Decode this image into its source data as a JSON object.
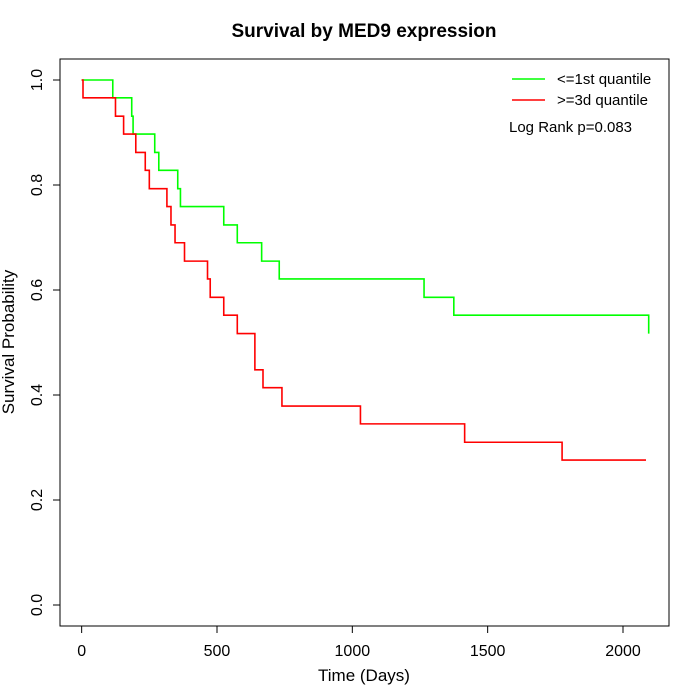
{
  "chart_data": {
    "type": "line",
    "title": "Survival by MED9 expression",
    "xlabel": "Time (Days)",
    "ylabel": "Survival Probability",
    "xlim": [
      -80,
      2170
    ],
    "ylim": [
      -0.04,
      1.04
    ],
    "x_ticks": [
      0,
      500,
      1000,
      1500,
      2000
    ],
    "x_tick_labels": [
      "0",
      "500",
      "1000",
      "1500",
      "2000"
    ],
    "y_ticks": [
      0.0,
      0.2,
      0.4,
      0.6,
      0.8,
      1.0
    ],
    "y_tick_labels": [
      "0.0",
      "0.2",
      "0.4",
      "0.6",
      "0.8",
      "1.0"
    ],
    "grid": false,
    "legend_position": "top-right",
    "annotation": "Log Rank p=0.083",
    "series": [
      {
        "name": "<=1st quantile",
        "color": "#00ff00",
        "step": true,
        "x": [
          0,
          115,
          185,
          190,
          270,
          285,
          355,
          365,
          525,
          575,
          665,
          730,
          1265,
          1375,
          2095
        ],
        "y": [
          1.0,
          0.966,
          0.931,
          0.897,
          0.862,
          0.828,
          0.793,
          0.759,
          0.724,
          0.69,
          0.655,
          0.621,
          0.586,
          0.552,
          0.517
        ]
      },
      {
        "name": ">=3d quantile",
        "color": "#ff0000",
        "step": true,
        "x": [
          0,
          5,
          125,
          155,
          200,
          235,
          250,
          315,
          330,
          345,
          380,
          465,
          475,
          525,
          575,
          640,
          670,
          740,
          1030,
          1415,
          1775,
          2085
        ],
        "y": [
          1.0,
          0.966,
          0.931,
          0.897,
          0.862,
          0.828,
          0.793,
          0.759,
          0.724,
          0.69,
          0.655,
          0.621,
          0.586,
          0.552,
          0.517,
          0.448,
          0.414,
          0.379,
          0.345,
          0.31,
          0.276,
          0.276
        ]
      }
    ]
  }
}
